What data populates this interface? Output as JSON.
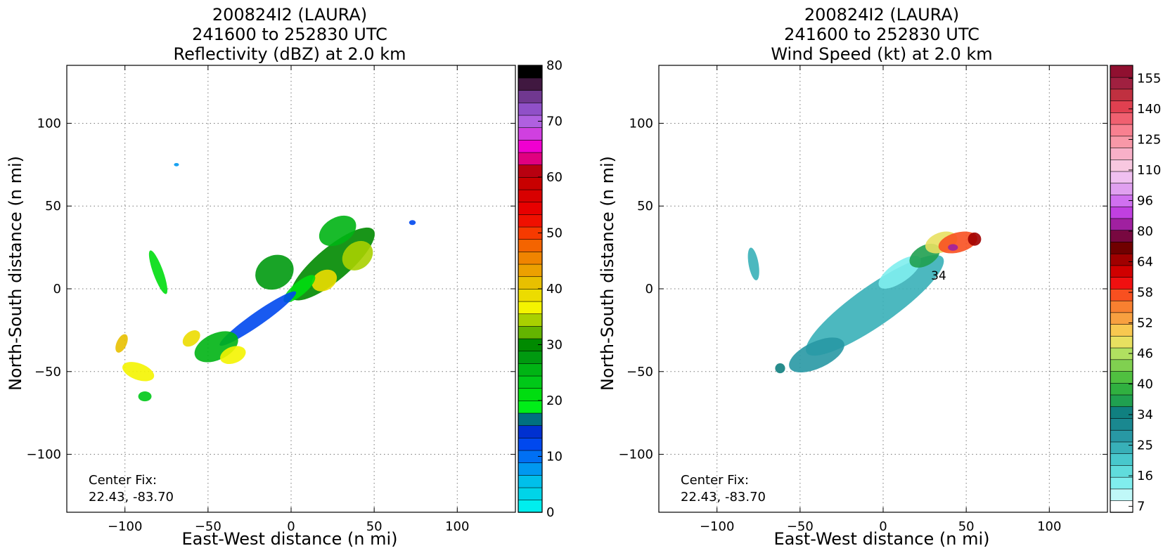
{
  "panels": [
    {
      "title_lines": [
        "200824I2 (LAURA)",
        "241600 to 252830 UTC",
        "Reflectivity (dBZ) at 2.0 km"
      ],
      "xlabel": "East-West distance (n mi)",
      "ylabel": "North-South distance (n mi)",
      "center_fix_label": "Center Fix:",
      "center_fix_value": "22.43, -83.70",
      "colorbar": {
        "ticks": [
          "0",
          "10",
          "20",
          "30",
          "40",
          "50",
          "60",
          "70",
          "80"
        ],
        "colors": [
          "#00eeee",
          "#00d4e8",
          "#00bfea",
          "#0098f0",
          "#0070f4",
          "#0048ee",
          "#0030d0",
          "#007080",
          "#00ee18",
          "#00dd10",
          "#00c818",
          "#00b414",
          "#009a10",
          "#008a00",
          "#64b400",
          "#a8d000",
          "#f4f400",
          "#ecdc00",
          "#e8c000",
          "#eca000",
          "#f08400",
          "#f46400",
          "#f63a00",
          "#f01000",
          "#e80000",
          "#d80000",
          "#c80000",
          "#b80010",
          "#e00080",
          "#f000d0",
          "#d040e0",
          "#b060e0",
          "#9050c8",
          "#703890",
          "#401840",
          "#000000"
        ]
      }
    },
    {
      "title_lines": [
        "200824I2 (LAURA)",
        "241600 to 252830 UTC",
        "Wind Speed (kt) at 2.0 km"
      ],
      "xlabel": "East-West distance (n mi)",
      "ylabel": "North-South distance (n mi)",
      "center_fix_label": "Center Fix:",
      "center_fix_value": "22.43, -83.70",
      "annotation": "34",
      "colorbar": {
        "ticks": [
          "7",
          "16",
          "25",
          "34",
          "40",
          "46",
          "52",
          "58",
          "64",
          "80",
          "96",
          "110",
          "125",
          "140",
          "155"
        ],
        "colors": [
          "#ffffff",
          "#c0f8f8",
          "#80eeee",
          "#60dcdc",
          "#48c8cc",
          "#38b0b8",
          "#2898a4",
          "#1a8890",
          "#108080",
          "#20a050",
          "#30b040",
          "#50c040",
          "#80d050",
          "#b0e060",
          "#e8e060",
          "#f8c850",
          "#f8a040",
          "#f88030",
          "#f85020",
          "#f01010",
          "#d00000",
          "#a00000",
          "#700000",
          "#780840",
          "#a020a0",
          "#c040e0",
          "#d070f0",
          "#e0a0f0",
          "#f0c0f0",
          "#f8c8e0",
          "#f8b0c8",
          "#f898a8",
          "#f88090",
          "#f06070",
          "#e04050",
          "#c03040",
          "#a02040",
          "#901030"
        ]
      }
    }
  ],
  "chart_data": [
    {
      "type": "heatmap",
      "title": "200824I2 (LAURA) 241600 to 252830 UTC Reflectivity (dBZ) at 2.0 km",
      "xlabel": "East-West distance (n mi)",
      "ylabel": "North-South distance (n mi)",
      "xlim": [
        -135,
        135
      ],
      "ylim": [
        -135,
        135
      ],
      "x_ticks": [
        -100,
        -50,
        0,
        50,
        100
      ],
      "y_ticks": [
        -100,
        -50,
        0,
        50,
        100
      ],
      "grid": true,
      "colorbar_range": [
        0,
        80
      ],
      "colorbar_ticks": [
        0,
        10,
        20,
        30,
        40,
        50,
        60,
        70,
        80
      ],
      "blobs": [
        {
          "x": 25,
          "y": 15,
          "rx": 32,
          "ry": 10,
          "rot": 40,
          "value": 30
        },
        {
          "x": -10,
          "y": 10,
          "rx": 12,
          "ry": 10,
          "rot": 30,
          "value": 28
        },
        {
          "x": 40,
          "y": 20,
          "rx": 10,
          "ry": 8,
          "rot": 40,
          "value": 34
        },
        {
          "x": 28,
          "y": 35,
          "rx": 12,
          "ry": 8,
          "rot": 30,
          "value": 26
        },
        {
          "x": 20,
          "y": 5,
          "rx": 8,
          "ry": 6,
          "rot": 30,
          "value": 38
        },
        {
          "x": 5,
          "y": 0,
          "rx": 12,
          "ry": 4,
          "rot": 40,
          "value": 22
        },
        {
          "x": -20,
          "y": -18,
          "rx": 28,
          "ry": 4,
          "rot": 35,
          "value": 12
        },
        {
          "x": -45,
          "y": -35,
          "rx": 14,
          "ry": 8,
          "rot": 25,
          "value": 26
        },
        {
          "x": -35,
          "y": -40,
          "rx": 8,
          "ry": 5,
          "rot": 20,
          "value": 36
        },
        {
          "x": -60,
          "y": -30,
          "rx": 6,
          "ry": 4,
          "rot": 40,
          "value": 38
        },
        {
          "x": -80,
          "y": 10,
          "rx": 3,
          "ry": 14,
          "rot": 20,
          "value": 22
        },
        {
          "x": -102,
          "y": -33,
          "rx": 3,
          "ry": 6,
          "rot": -25,
          "value": 40
        },
        {
          "x": -92,
          "y": -50,
          "rx": 10,
          "ry": 5,
          "rot": -20,
          "value": 36
        },
        {
          "x": -88,
          "y": -65,
          "rx": 4,
          "ry": 3,
          "rot": 0,
          "value": 24
        },
        {
          "x": -69,
          "y": 75,
          "rx": 1.5,
          "ry": 1,
          "rot": 0,
          "value": 8
        },
        {
          "x": 73,
          "y": 40,
          "rx": 2,
          "ry": 1.5,
          "rot": 0,
          "value": 12
        }
      ]
    },
    {
      "type": "heatmap",
      "title": "200824I2 (LAURA) 241600 to 252830 UTC Wind Speed (kt) at 2.0 km",
      "xlabel": "East-West distance (n mi)",
      "ylabel": "North-South distance (n mi)",
      "xlim": [
        -135,
        135
      ],
      "ylim": [
        -135,
        135
      ],
      "x_ticks": [
        -100,
        -50,
        0,
        50,
        100
      ],
      "y_ticks": [
        -100,
        -50,
        0,
        50,
        100
      ],
      "grid": true,
      "colorbar_ticks": [
        7,
        16,
        25,
        34,
        40,
        46,
        52,
        58,
        64,
        80,
        96,
        110,
        125,
        140,
        155
      ],
      "blobs": [
        {
          "x": -5,
          "y": -10,
          "rx": 50,
          "ry": 12,
          "rot": 35,
          "value": 25
        },
        {
          "x": -40,
          "y": -40,
          "rx": 18,
          "ry": 8,
          "rot": 25,
          "value": 28
        },
        {
          "x": 10,
          "y": 10,
          "rx": 15,
          "ry": 6,
          "rot": 35,
          "value": 14
        },
        {
          "x": 25,
          "y": 20,
          "rx": 10,
          "ry": 6,
          "rot": 30,
          "value": 38
        },
        {
          "x": 35,
          "y": 28,
          "rx": 10,
          "ry": 6,
          "rot": 20,
          "value": 48
        },
        {
          "x": 45,
          "y": 28,
          "rx": 12,
          "ry": 6,
          "rot": 15,
          "value": 56
        },
        {
          "x": 55,
          "y": 30,
          "rx": 4,
          "ry": 4,
          "rot": 0,
          "value": 64
        },
        {
          "x": 42,
          "y": 25,
          "rx": 3,
          "ry": 2,
          "rot": 0,
          "value": 80
        },
        {
          "x": -78,
          "y": 15,
          "rx": 3,
          "ry": 10,
          "rot": 10,
          "value": 25
        },
        {
          "x": -62,
          "y": -48,
          "rx": 3,
          "ry": 3,
          "rot": 0,
          "value": 34
        }
      ]
    }
  ]
}
